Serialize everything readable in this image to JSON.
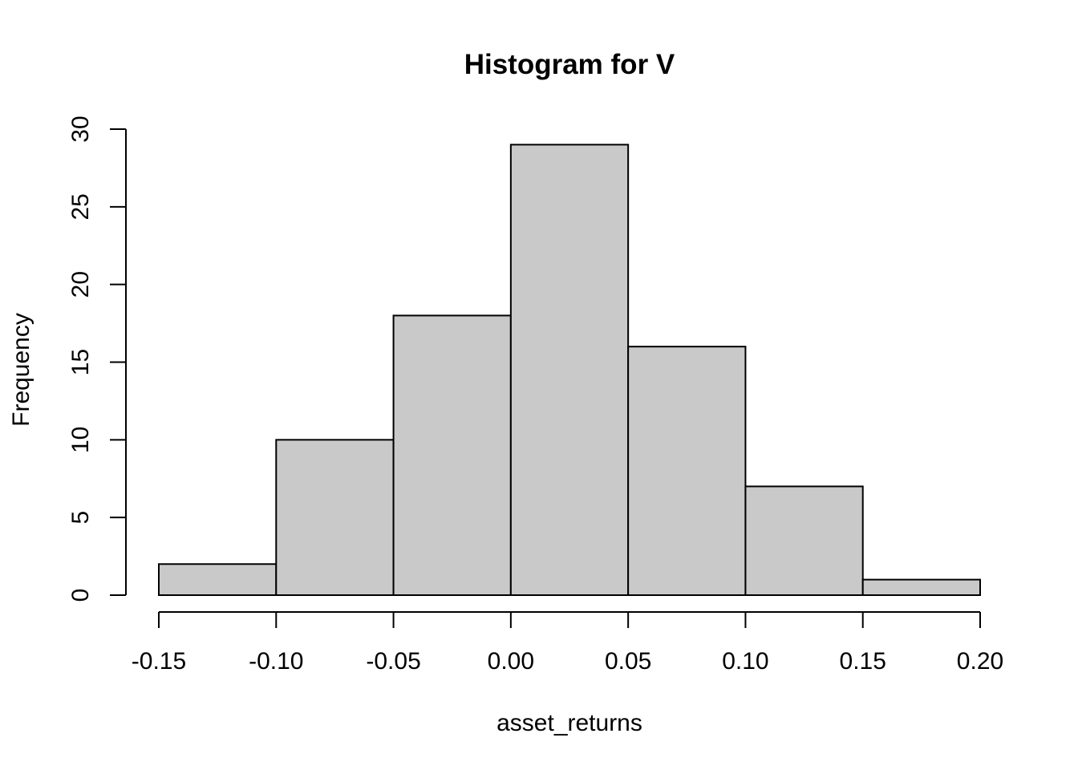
{
  "chart_data": {
    "type": "bar",
    "title": "Histogram for V",
    "xlabel": "asset_returns",
    "ylabel": "Frequency",
    "bins": [
      {
        "start": -0.15,
        "end": -0.1,
        "count": 2
      },
      {
        "start": -0.1,
        "end": -0.05,
        "count": 10
      },
      {
        "start": -0.05,
        "end": 0.0,
        "count": 18
      },
      {
        "start": 0.0,
        "end": 0.05,
        "count": 29
      },
      {
        "start": 0.05,
        "end": 0.1,
        "count": 16
      },
      {
        "start": 0.1,
        "end": 0.15,
        "count": 7
      },
      {
        "start": 0.15,
        "end": 0.2,
        "count": 1
      }
    ],
    "xlim": [
      -0.15,
      0.2
    ],
    "ylim": [
      0,
      30
    ],
    "x_ticks": [
      -0.15,
      -0.1,
      -0.05,
      0.0,
      0.05,
      0.1,
      0.15,
      0.2
    ],
    "x_tick_labels": [
      "-0.15",
      "-0.10",
      "-0.05",
      "0.00",
      "0.05",
      "0.10",
      "0.15",
      "0.20"
    ],
    "y_ticks": [
      0,
      5,
      10,
      15,
      20,
      25,
      30
    ],
    "y_tick_labels": [
      "0",
      "5",
      "10",
      "15",
      "20",
      "25",
      "30"
    ],
    "grid": false,
    "legend": "none",
    "colors": {
      "bar_fill": "#c9c9c9",
      "bar_stroke": "#000000",
      "axis": "#000000"
    }
  }
}
